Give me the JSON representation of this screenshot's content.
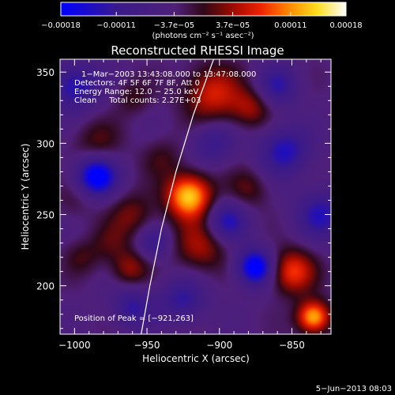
{
  "chart_data": {
    "type": "heatmap",
    "title": "Reconstructed RHESSI Image",
    "xlabel": "Heliocentric X (arcsec)",
    "ylabel": "Heliocentric Y (arcsec)",
    "xlim": [
      -1010,
      -823
    ],
    "ylim": [
      166,
      359
    ],
    "xticks": [
      -1000,
      -950,
      -900,
      -850
    ],
    "yticks": [
      200,
      250,
      300,
      350
    ],
    "xtick_labels": [
      "−1000",
      "−950",
      "−900",
      "−850"
    ],
    "ytick_labels": [
      "200",
      "250",
      "300",
      "350"
    ],
    "colormap": "heat (blue-purple-red-yellow-white)",
    "colorbar": {
      "range": [
        -0.00018,
        0.00018
      ],
      "ticks": [
        -0.00018,
        -0.00011,
        -3.7e-05,
        3.7e-05,
        0.00011,
        0.00018
      ],
      "tick_labels": [
        "−0.00018",
        "−0.00011",
        "−3.7e−05",
        "3.7e−05",
        "0.00011",
        "0.00018"
      ],
      "units": "(photons cm⁻² s⁻¹ asec⁻²)"
    },
    "annotations": [
      "1−Mar−2003 13:43:08.000 to 13:47:08.000",
      "Detectors: 4F 5F 6F 7F 8F, Att 0",
      "Energy Range: 12.0 − 25.0 keV",
      "Clean     Total counts: 2.27E+03"
    ],
    "peak_label": "Position of Peak = [−921,263]",
    "peak": [
      -921,
      263
    ],
    "limb_line": [
      [
        -954,
        166
      ],
      [
        -948,
        200
      ],
      [
        -940,
        240
      ],
      [
        -930,
        280
      ],
      [
        -918,
        320
      ],
      [
        -904,
        359
      ]
    ],
    "sources": [
      {
        "x": -921,
        "y": 263,
        "value": 0.00018,
        "spread": 11
      },
      {
        "x": -913,
        "y": 228,
        "value": 8e-05,
        "spread": 13
      },
      {
        "x": -905,
        "y": 335,
        "value": 0.0001,
        "spread": 14
      },
      {
        "x": -878,
        "y": 325,
        "value": 7e-05,
        "spread": 10
      },
      {
        "x": -960,
        "y": 250,
        "value": 6e-05,
        "spread": 11
      },
      {
        "x": -975,
        "y": 230,
        "value": 4e-05,
        "spread": 10
      },
      {
        "x": -995,
        "y": 220,
        "value": 4e-05,
        "spread": 9
      },
      {
        "x": -985,
        "y": 300,
        "value": 5e-05,
        "spread": 12
      },
      {
        "x": -962,
        "y": 212,
        "value": 7e-05,
        "spread": 9
      },
      {
        "x": -850,
        "y": 210,
        "value": 0.00012,
        "spread": 11
      },
      {
        "x": -835,
        "y": 178,
        "value": 0.00017,
        "spread": 8
      },
      {
        "x": -880,
        "y": 268,
        "value": 5e-05,
        "spread": 10
      },
      {
        "x": -960,
        "y": 332,
        "value": 4e-05,
        "spread": 9
      },
      {
        "x": -940,
        "y": 290,
        "value": 4e-05,
        "spread": 10
      },
      {
        "x": -1000,
        "y": 260,
        "value": 3e-05,
        "spread": 10
      },
      {
        "x": -985,
        "y": 277,
        "value": -0.00016,
        "spread": 10
      },
      {
        "x": -875,
        "y": 213,
        "value": -0.00016,
        "spread": 9
      },
      {
        "x": -855,
        "y": 295,
        "value": -0.0001,
        "spread": 12
      },
      {
        "x": -925,
        "y": 190,
        "value": -8e-05,
        "spread": 11
      },
      {
        "x": -1000,
        "y": 340,
        "value": -0.0001,
        "spread": 12
      },
      {
        "x": -895,
        "y": 245,
        "value": -0.0001,
        "spread": 10
      },
      {
        "x": -960,
        "y": 185,
        "value": -8e-05,
        "spread": 10
      },
      {
        "x": -860,
        "y": 340,
        "value": -8e-05,
        "spread": 10
      },
      {
        "x": -945,
        "y": 230,
        "value": -7e-05,
        "spread": 8
      },
      {
        "x": -905,
        "y": 300,
        "value": -7e-05,
        "spread": 10
      },
      {
        "x": -830,
        "y": 250,
        "value": -9e-05,
        "spread": 12
      }
    ]
  },
  "footer": {
    "date": "5−Jun−2013 08:03"
  }
}
